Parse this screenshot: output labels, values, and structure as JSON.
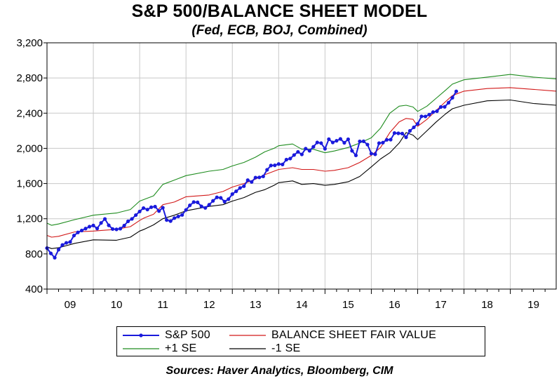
{
  "chart_data": {
    "type": "line",
    "title": "S&P 500/BALANCE SHEET MODEL",
    "subtitle": "(Fed, ECB, BOJ, Combined)",
    "source": "Sources:  Haver Analytics, Bloomberg, CIM",
    "ylim": [
      400,
      3200
    ],
    "yticks": [
      "400",
      "800",
      "1,200",
      "1,600",
      "2,000",
      "2,400",
      "2,800",
      "3,200"
    ],
    "ytick_values": [
      400,
      800,
      1200,
      1600,
      2000,
      2400,
      2800,
      3200
    ],
    "xlim": [
      2009,
      2019.99
    ],
    "xticks": [
      "09",
      "10",
      "11",
      "12",
      "13",
      "14",
      "15",
      "16",
      "17",
      "18",
      "19"
    ],
    "grid": true,
    "legend_position": "bottom",
    "series": [
      {
        "name": "S&P 500",
        "color": "#1a1adc",
        "marker": "circle",
        "x": [
          2009.0,
          2009.083,
          2009.167,
          2009.25,
          2009.333,
          2009.417,
          2009.5,
          2009.583,
          2009.667,
          2009.75,
          2009.833,
          2009.917,
          2010.0,
          2010.083,
          2010.167,
          2010.25,
          2010.333,
          2010.417,
          2010.5,
          2010.583,
          2010.667,
          2010.75,
          2010.833,
          2010.917,
          2011.0,
          2011.083,
          2011.167,
          2011.25,
          2011.333,
          2011.417,
          2011.5,
          2011.583,
          2011.667,
          2011.75,
          2011.833,
          2011.917,
          2012.0,
          2012.083,
          2012.167,
          2012.25,
          2012.333,
          2012.417,
          2012.5,
          2012.583,
          2012.667,
          2012.75,
          2012.833,
          2012.917,
          2013.0,
          2013.083,
          2013.167,
          2013.25,
          2013.333,
          2013.417,
          2013.5,
          2013.583,
          2013.667,
          2013.75,
          2013.833,
          2013.917,
          2014.0,
          2014.083,
          2014.167,
          2014.25,
          2014.333,
          2014.417,
          2014.5,
          2014.583,
          2014.667,
          2014.75,
          2014.833,
          2014.917,
          2015.0,
          2015.083,
          2015.167,
          2015.25,
          2015.333,
          2015.417,
          2015.5,
          2015.583,
          2015.667,
          2015.75,
          2015.833,
          2015.917,
          2016.0,
          2016.083,
          2016.167,
          2016.25,
          2016.333,
          2016.417,
          2016.5,
          2016.583,
          2016.667,
          2016.75,
          2016.833,
          2016.917,
          2017.0,
          2017.083,
          2017.167,
          2017.25,
          2017.333,
          2017.417,
          2017.5,
          2017.583,
          2017.667,
          2017.75,
          2017.833
        ],
        "y": [
          866,
          806,
          757,
          848,
          902,
          926,
          936,
          1009,
          1044,
          1066,
          1088,
          1110,
          1123,
          1089,
          1152,
          1197,
          1125,
          1083,
          1079,
          1087,
          1122,
          1171,
          1198,
          1241,
          1282,
          1321,
          1304,
          1331,
          1338,
          1287,
          1325,
          1185,
          1173,
          1207,
          1226,
          1243,
          1300,
          1352,
          1389,
          1386,
          1341,
          1323,
          1359,
          1403,
          1443,
          1437,
          1394,
          1422,
          1480,
          1512,
          1550,
          1570,
          1639,
          1618,
          1668,
          1670,
          1681,
          1756,
          1805,
          1807,
          1822,
          1817,
          1872,
          1884,
          1924,
          1960,
          1931,
          1997,
          1972,
          2018,
          2067,
          2059,
          1995,
          2104,
          2067,
          2086,
          2107,
          2063,
          2103,
          1972,
          1920,
          2079,
          2080,
          2043,
          1940,
          1932,
          2059,
          2065,
          2097,
          2099,
          2174,
          2171,
          2168,
          2126,
          2199,
          2239,
          2279,
          2364,
          2363,
          2384,
          2412,
          2423,
          2470,
          2472,
          2519,
          2575,
          2648
        ]
      },
      {
        "name": "BALANCE SHEET FAIR VALUE",
        "color": "#d21919",
        "x": [
          2009.0,
          2009.1,
          2009.25,
          2009.6,
          2010.0,
          2010.5,
          2010.8,
          2011.0,
          2011.1,
          2011.3,
          2011.5,
          2011.75,
          2012.0,
          2012.5,
          2012.8,
          2013.0,
          2013.25,
          2013.5,
          2013.7,
          2013.9,
          2014.0,
          2014.3,
          2014.5,
          2014.75,
          2015.0,
          2015.2,
          2015.5,
          2015.75,
          2016.0,
          2016.2,
          2016.4,
          2016.6,
          2016.75,
          2016.9,
          2017.0,
          2017.2,
          2017.4,
          2017.6,
          2017.75,
          2018.0,
          2018.5,
          2019.0,
          2019.5,
          2019.99
        ],
        "y": [
          1010,
          990,
          1000,
          1050,
          1060,
          1080,
          1110,
          1180,
          1210,
          1250,
          1360,
          1390,
          1450,
          1470,
          1510,
          1560,
          1600,
          1650,
          1700,
          1740,
          1760,
          1780,
          1760,
          1760,
          1740,
          1750,
          1780,
          1840,
          1920,
          2010,
          2180,
          2300,
          2340,
          2330,
          2250,
          2330,
          2430,
          2530,
          2600,
          2650,
          2680,
          2690,
          2670,
          2650
        ]
      },
      {
        "name": "+1 SE",
        "color": "#1e8c1e",
        "x": [
          2009.0,
          2009.1,
          2009.25,
          2009.6,
          2010.0,
          2010.5,
          2010.8,
          2011.0,
          2011.1,
          2011.3,
          2011.5,
          2011.75,
          2012.0,
          2012.5,
          2012.8,
          2013.0,
          2013.25,
          2013.5,
          2013.7,
          2013.9,
          2014.0,
          2014.3,
          2014.5,
          2014.75,
          2015.0,
          2015.2,
          2015.5,
          2015.75,
          2016.0,
          2016.2,
          2016.4,
          2016.6,
          2016.75,
          2016.9,
          2017.0,
          2017.2,
          2017.4,
          2017.6,
          2017.75,
          2018.0,
          2018.5,
          2019.0,
          2019.5,
          2019.99
        ],
        "y": [
          1150,
          1125,
          1140,
          1190,
          1240,
          1265,
          1305,
          1400,
          1420,
          1460,
          1590,
          1640,
          1690,
          1740,
          1760,
          1800,
          1840,
          1900,
          1960,
          2000,
          2030,
          2050,
          1990,
          1990,
          1950,
          1970,
          2010,
          2060,
          2120,
          2230,
          2400,
          2480,
          2490,
          2470,
          2420,
          2480,
          2570,
          2660,
          2730,
          2780,
          2810,
          2840,
          2810,
          2790
        ]
      },
      {
        "name": "-1 SE",
        "color": "#000000",
        "x": [
          2009.0,
          2009.1,
          2009.25,
          2009.6,
          2010.0,
          2010.5,
          2010.8,
          2011.0,
          2011.1,
          2011.3,
          2011.5,
          2011.75,
          2012.0,
          2012.5,
          2012.8,
          2013.0,
          2013.25,
          2013.5,
          2013.7,
          2013.9,
          2014.0,
          2014.3,
          2014.5,
          2014.75,
          2015.0,
          2015.2,
          2015.5,
          2015.75,
          2016.0,
          2016.2,
          2016.4,
          2016.6,
          2016.75,
          2016.9,
          2017.0,
          2017.2,
          2017.4,
          2017.6,
          2017.75,
          2018.0,
          2018.5,
          2019.0,
          2019.5,
          2019.99
        ],
        "y": [
          880,
          860,
          870,
          920,
          960,
          955,
          990,
          1060,
          1080,
          1130,
          1200,
          1240,
          1290,
          1340,
          1360,
          1400,
          1440,
          1500,
          1530,
          1580,
          1610,
          1630,
          1590,
          1600,
          1580,
          1590,
          1620,
          1680,
          1790,
          1880,
          1950,
          2060,
          2180,
          2150,
          2100,
          2200,
          2300,
          2390,
          2450,
          2490,
          2540,
          2550,
          2510,
          2490
        ]
      }
    ]
  }
}
